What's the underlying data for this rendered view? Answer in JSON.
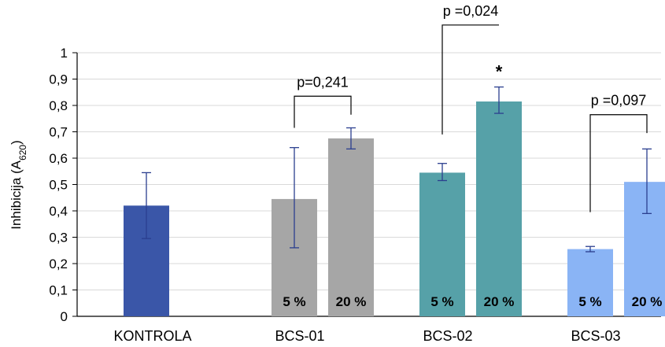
{
  "chart_data": {
    "type": "bar",
    "ylabel": "Inhibicija (A",
    "ylabel_sub": "620",
    "ylabel_close": ")",
    "ylim": [
      0,
      1
    ],
    "yticks": [
      "0",
      "0,1",
      "0,2",
      "0,3",
      "0,4",
      "0,5",
      "0,6",
      "0,7",
      "0,8",
      "0,9",
      "1"
    ],
    "grid": true,
    "categories": [
      "KONTROLA",
      "BCS-01",
      "BCS-02",
      "BCS-03"
    ],
    "bars": [
      {
        "group": "KONTROLA",
        "label": "",
        "value": 0.42,
        "err_low": 0.295,
        "err_high": 0.545,
        "color": "#3a56a8"
      },
      {
        "group": "BCS-01",
        "label": "5 %",
        "value": 0.445,
        "err_low": 0.26,
        "err_high": 0.64,
        "color": "#a6a6a6"
      },
      {
        "group": "BCS-01",
        "label": "20 %",
        "value": 0.675,
        "err_low": 0.635,
        "err_high": 0.715,
        "color": "#a6a6a6"
      },
      {
        "group": "BCS-02",
        "label": "5 %",
        "value": 0.545,
        "err_low": 0.515,
        "err_high": 0.58,
        "color": "#56a1a8"
      },
      {
        "group": "BCS-02",
        "label": "20 %",
        "value": 0.815,
        "err_low": 0.77,
        "err_high": 0.87,
        "color": "#56a1a8"
      },
      {
        "group": "BCS-03",
        "label": "5 %",
        "value": 0.255,
        "err_low": 0.245,
        "err_high": 0.265,
        "color": "#8ab4f5"
      },
      {
        "group": "BCS-03",
        "label": "20 %",
        "value": 0.51,
        "err_low": 0.39,
        "err_high": 0.635,
        "color": "#8ab4f5"
      }
    ],
    "annotations": [
      {
        "text": "p=0,241",
        "from_bar": 1,
        "to_bar": 2,
        "y_level": 0.835,
        "left_end": 0.715,
        "right_end": 0.765
      },
      {
        "text": "p =0,024",
        "from_bar": 3,
        "to_bar": 4,
        "y_level": 1.105,
        "left_end": 0.69,
        "right_end": 1.105
      },
      {
        "text": "p =0,097",
        "from_bar": 5,
        "to_bar": 6,
        "y_level": 0.765,
        "left_end": 0.395,
        "right_end": 0.695
      }
    ],
    "significance": [
      {
        "text": "*",
        "bar": 4
      }
    ]
  }
}
